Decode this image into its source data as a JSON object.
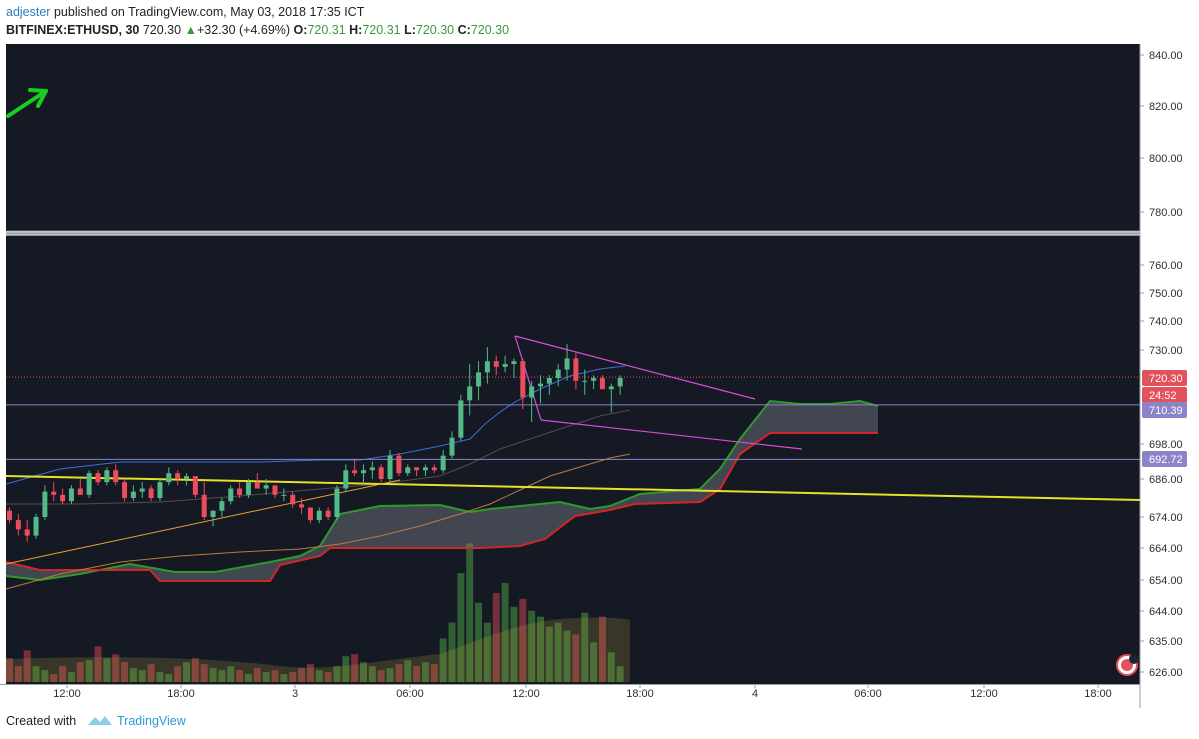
{
  "header": {
    "author": "adjester",
    "published_text": " published on TradingView.com, May 03, 2018 17:35 ICT",
    "symbol": "BITFINEX:ETHUSD, 30",
    "last": "720.30",
    "change": "+32.30 (+4.69%)",
    "o_label": "O:",
    "o_value": "720.31",
    "h_label": "H:",
    "h_value": "720.31",
    "l_label": "L:",
    "l_value": "720.30",
    "c_label": "C:",
    "c_value": "720.30"
  },
  "footer": {
    "created_with": "Created with",
    "brand": "TradingView"
  },
  "chart_data": {
    "type": "candlestick",
    "symbol": "BITFINEX:ETHUSD",
    "interval": "30",
    "price_axis_labels": [
      "840.00",
      "820.00",
      "800.00",
      "780.00",
      "760.00",
      "750.00",
      "740.00",
      "730.00",
      "720.30",
      "710.39",
      "698.00",
      "692.72",
      "686.00",
      "674.00",
      "664.00",
      "654.00",
      "644.00",
      "635.00",
      "626.00"
    ],
    "time_axis_labels": [
      "12:00",
      "18:00",
      "3",
      "06:00",
      "12:00",
      "18:00",
      "4",
      "06:00",
      "12:00",
      "18:00"
    ],
    "price_tags": [
      {
        "value": "720.30",
        "color": "#e2525c"
      },
      {
        "value": "24:52",
        "color": "#e2525c"
      },
      {
        "value": "710.39",
        "color": "#8d83c9"
      },
      {
        "value": "692.72",
        "color": "#8d83c9"
      }
    ],
    "horizontal_levels": [
      {
        "price": 772,
        "color": "#9aa3ad",
        "style": "thick"
      },
      {
        "price": 720.3,
        "color": "#e2525c",
        "style": "dotted"
      },
      {
        "price": 710.39,
        "color": "#8d83c9",
        "style": "thin"
      },
      {
        "price": 692.72,
        "color": "#8d83c9",
        "style": "thin"
      }
    ],
    "candles": [
      [
        676,
        677,
        672,
        673
      ],
      [
        673,
        675,
        668,
        670
      ],
      [
        670,
        673,
        666,
        668
      ],
      [
        668,
        675,
        667,
        674
      ],
      [
        674,
        684,
        673,
        682
      ],
      [
        682,
        685,
        679,
        681
      ],
      [
        681,
        683,
        678,
        679
      ],
      [
        679,
        684,
        678,
        683
      ],
      [
        683,
        686,
        681,
        681
      ],
      [
        681,
        689,
        680,
        688
      ],
      [
        688,
        689,
        684,
        685
      ],
      [
        685,
        690,
        684,
        689
      ],
      [
        689,
        691,
        684,
        685
      ],
      [
        685,
        686,
        679,
        680
      ],
      [
        680,
        684,
        679,
        682
      ],
      [
        682,
        685,
        680,
        683
      ],
      [
        683,
        684,
        679,
        680
      ],
      [
        680,
        686,
        679,
        685
      ],
      [
        685,
        690,
        684,
        688
      ],
      [
        688,
        689,
        684,
        686
      ],
      [
        686,
        688,
        684,
        687
      ],
      [
        687,
        687,
        680,
        681
      ],
      [
        681,
        685,
        673,
        674
      ],
      [
        674,
        676,
        671,
        676
      ],
      [
        676,
        680,
        674,
        679
      ],
      [
        679,
        684,
        678,
        683
      ],
      [
        683,
        685,
        680,
        681
      ],
      [
        681,
        686,
        680,
        685
      ],
      [
        685,
        688,
        683,
        683
      ],
      [
        683,
        686,
        681,
        684
      ],
      [
        684,
        684,
        680,
        681
      ],
      [
        681,
        683,
        679,
        681
      ],
      [
        681,
        682,
        677,
        678
      ],
      [
        678,
        680,
        675,
        677
      ],
      [
        677,
        677,
        672,
        673
      ],
      [
        673,
        677,
        672,
        676
      ],
      [
        676,
        677,
        673,
        674
      ],
      [
        674,
        684,
        673,
        683
      ],
      [
        683,
        691,
        682,
        689
      ],
      [
        689,
        693,
        687,
        688
      ],
      [
        688,
        691,
        684,
        689
      ],
      [
        689,
        692,
        686,
        690
      ],
      [
        690,
        691,
        685,
        686
      ],
      [
        686,
        696,
        685,
        694
      ],
      [
        694,
        695,
        687,
        688
      ],
      [
        688,
        691,
        687,
        690
      ],
      [
        690,
        690,
        687,
        689
      ],
      [
        689,
        691,
        687,
        690
      ],
      [
        690,
        691,
        688,
        689
      ],
      [
        689,
        696,
        688,
        694
      ],
      [
        694,
        702,
        693,
        700
      ],
      [
        700,
        714,
        699,
        712
      ],
      [
        712,
        725,
        707,
        717
      ],
      [
        717,
        726,
        712,
        722
      ],
      [
        722,
        731,
        718,
        726
      ],
      [
        726,
        728,
        721,
        724
      ],
      [
        724,
        728,
        722,
        725
      ],
      [
        725,
        727,
        720,
        726
      ],
      [
        726,
        727,
        709,
        713
      ],
      [
        713,
        719,
        705,
        717
      ],
      [
        717,
        721,
        711,
        718
      ],
      [
        718,
        721,
        714,
        720
      ],
      [
        720,
        725,
        717,
        723
      ],
      [
        723,
        732,
        719,
        727
      ],
      [
        727,
        729,
        716,
        719
      ],
      [
        719,
        723,
        714,
        719
      ],
      [
        719,
        721,
        716,
        720
      ],
      [
        720,
        721,
        716,
        716
      ],
      [
        716,
        718,
        708,
        717
      ],
      [
        717,
        721,
        714,
        720
      ]
    ],
    "volume": [
      12,
      8,
      16,
      8,
      6,
      4,
      8,
      5,
      10,
      11,
      18,
      12,
      14,
      10,
      7,
      6,
      9,
      5,
      4,
      8,
      10,
      12,
      9,
      7,
      6,
      8,
      6,
      4,
      7,
      5,
      6,
      4,
      5,
      7,
      9,
      6,
      5,
      8,
      13,
      14,
      10,
      8,
      6,
      7,
      9,
      11,
      8,
      10,
      9,
      22,
      30,
      55,
      70,
      40,
      30,
      45,
      50,
      38,
      42,
      36,
      33,
      28,
      30,
      26,
      24,
      35,
      20,
      33,
      15,
      8
    ]
  }
}
